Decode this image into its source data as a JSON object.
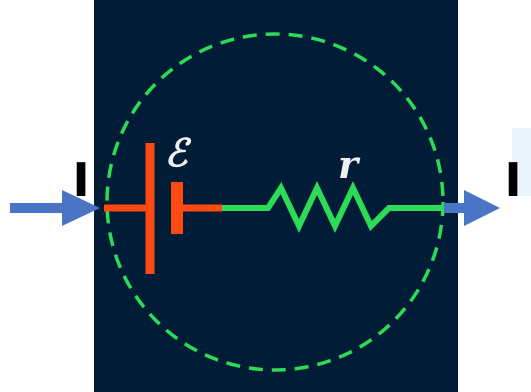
{
  "diagram": {
    "labels": {
      "current_in": "I",
      "current_out": "I",
      "emf": "ℰ",
      "resistance": "r"
    },
    "colors": {
      "panel_background": "#011c36",
      "battery": "#ff4a14",
      "wire": "#2ddc56",
      "boundary": "#2ddc56",
      "arrow": "#4a74c4",
      "label_light": "#f0f0f0",
      "label_dark": "#000000"
    }
  }
}
